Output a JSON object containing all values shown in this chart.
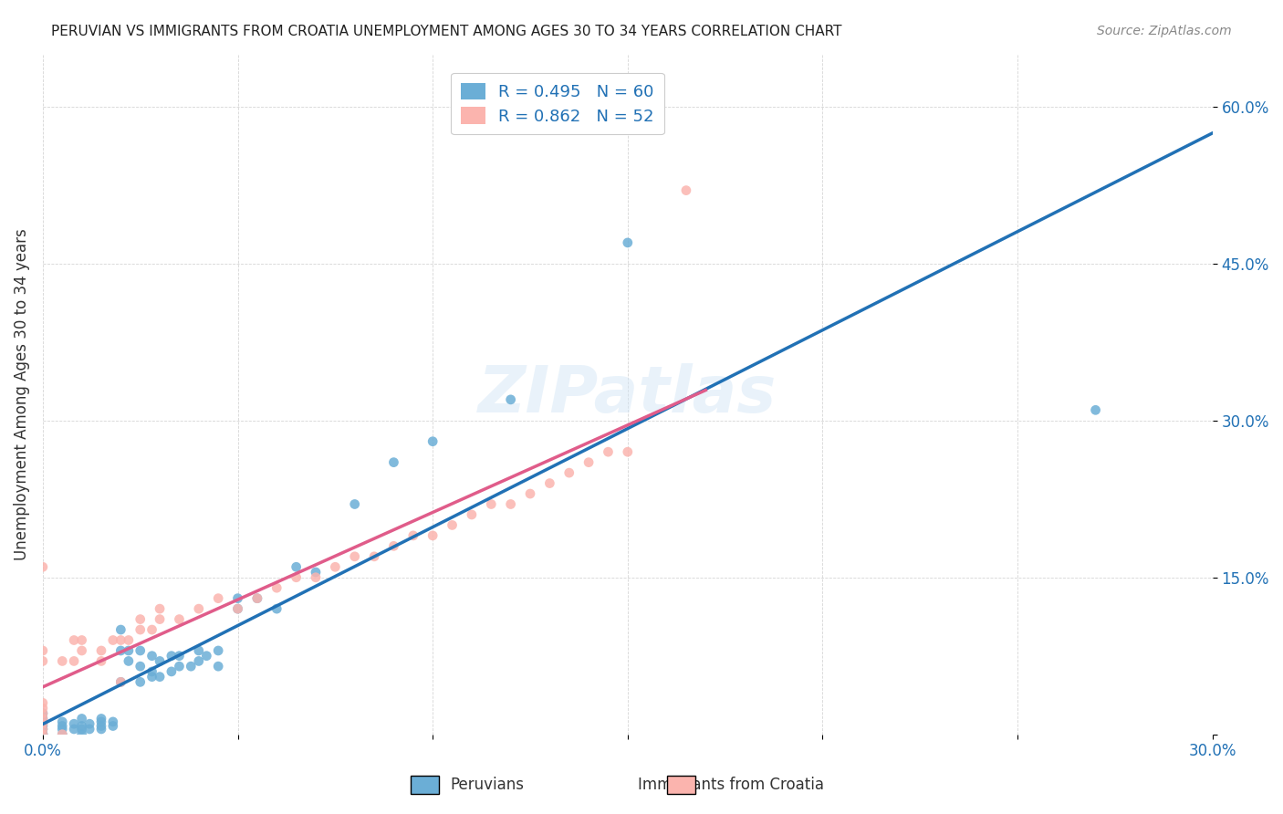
{
  "title": "PERUVIAN VS IMMIGRANTS FROM CROATIA UNEMPLOYMENT AMONG AGES 30 TO 34 YEARS CORRELATION CHART",
  "source": "Source: ZipAtlas.com",
  "xlabel": "",
  "ylabel": "Unemployment Among Ages 30 to 34 years",
  "xlim": [
    0,
    0.3
  ],
  "ylim": [
    0,
    0.65
  ],
  "xticks": [
    0.0,
    0.05,
    0.1,
    0.15,
    0.2,
    0.25,
    0.3
  ],
  "xtick_labels": [
    "0.0%",
    "",
    "",
    "",
    "",
    "",
    "30.0%"
  ],
  "yticks": [
    0.0,
    0.15,
    0.3,
    0.45,
    0.6
  ],
  "ytick_labels": [
    "",
    "15.0%",
    "30.0%",
    "45.0%",
    "60.0%"
  ],
  "legend_r1": "R = 0.495",
  "legend_n1": "N = 60",
  "legend_r2": "R = 0.862",
  "legend_n2": "N = 52",
  "color_peruvian": "#6baed6",
  "color_croatia": "#fbb4ae",
  "color_line_peruvian": "#2171b5",
  "color_line_croatia": "#e05c8a",
  "color_text_blue": "#2171b5",
  "color_text_pink": "#e05c8a",
  "watermark": "ZIPatlas",
  "peruvian_x": [
    0.0,
    0.0,
    0.0,
    0.0,
    0.0,
    0.0,
    0.0,
    0.005,
    0.005,
    0.005,
    0.005,
    0.008,
    0.008,
    0.01,
    0.01,
    0.01,
    0.01,
    0.012,
    0.012,
    0.015,
    0.015,
    0.015,
    0.015,
    0.018,
    0.018,
    0.02,
    0.02,
    0.02,
    0.022,
    0.022,
    0.025,
    0.025,
    0.025,
    0.028,
    0.028,
    0.028,
    0.03,
    0.03,
    0.033,
    0.033,
    0.035,
    0.035,
    0.038,
    0.04,
    0.04,
    0.042,
    0.045,
    0.045,
    0.05,
    0.05,
    0.055,
    0.06,
    0.065,
    0.07,
    0.08,
    0.09,
    0.1,
    0.12,
    0.15,
    0.27
  ],
  "peruvian_y": [
    0.0,
    0.0,
    0.005,
    0.008,
    0.01,
    0.015,
    0.02,
    0.0,
    0.005,
    0.008,
    0.012,
    0.005,
    0.01,
    0.0,
    0.005,
    0.008,
    0.015,
    0.005,
    0.01,
    0.005,
    0.008,
    0.012,
    0.015,
    0.008,
    0.012,
    0.05,
    0.08,
    0.1,
    0.07,
    0.08,
    0.05,
    0.065,
    0.08,
    0.055,
    0.06,
    0.075,
    0.055,
    0.07,
    0.06,
    0.075,
    0.065,
    0.075,
    0.065,
    0.07,
    0.08,
    0.075,
    0.065,
    0.08,
    0.12,
    0.13,
    0.13,
    0.12,
    0.16,
    0.155,
    0.22,
    0.26,
    0.28,
    0.32,
    0.47,
    0.31
  ],
  "croatia_x": [
    0.0,
    0.0,
    0.0,
    0.0,
    0.0,
    0.0,
    0.0,
    0.0,
    0.0,
    0.0,
    0.005,
    0.005,
    0.008,
    0.008,
    0.01,
    0.01,
    0.015,
    0.015,
    0.018,
    0.02,
    0.02,
    0.022,
    0.025,
    0.025,
    0.028,
    0.03,
    0.03,
    0.035,
    0.04,
    0.045,
    0.05,
    0.055,
    0.06,
    0.065,
    0.07,
    0.075,
    0.08,
    0.085,
    0.09,
    0.095,
    0.1,
    0.105,
    0.11,
    0.115,
    0.12,
    0.125,
    0.13,
    0.135,
    0.14,
    0.145,
    0.15,
    0.165
  ],
  "croatia_y": [
    0.0,
    0.005,
    0.01,
    0.015,
    0.02,
    0.025,
    0.03,
    0.07,
    0.08,
    0.16,
    0.0,
    0.07,
    0.07,
    0.09,
    0.08,
    0.09,
    0.07,
    0.08,
    0.09,
    0.05,
    0.09,
    0.09,
    0.1,
    0.11,
    0.1,
    0.11,
    0.12,
    0.11,
    0.12,
    0.13,
    0.12,
    0.13,
    0.14,
    0.15,
    0.15,
    0.16,
    0.17,
    0.17,
    0.18,
    0.19,
    0.19,
    0.2,
    0.21,
    0.22,
    0.22,
    0.23,
    0.24,
    0.25,
    0.26,
    0.27,
    0.27,
    0.52
  ]
}
